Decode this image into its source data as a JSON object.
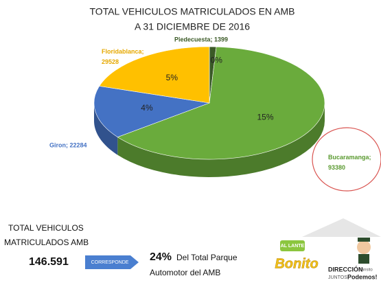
{
  "chart_data": {
    "type": "pie",
    "title": "TOTAL VEHICULOS MATRICULADOS  EN AMB",
    "subtitle": "A 31 DICIEMBRE  DE 2016",
    "labels": [
      "Piedecuesta; 1399",
      "Bucaramanga; 93380",
      "Giron; 22284",
      "Floridablanca; 29528"
    ],
    "values": [
      1399,
      93380,
      22284,
      29528
    ],
    "percent_labels": [
      "0%",
      "15%",
      "4%",
      "5%"
    ],
    "colors": [
      "#3b5a26",
      "#6aab3c",
      "#4472c4",
      "#ffc000"
    ],
    "label_colors": [
      "#3b5a26",
      "#5a9a30",
      "#4472c4",
      "#e6a800"
    ]
  },
  "footer": {
    "total_heading": [
      "TOTAL VEHICULOS",
      "MATRICULADOS AMB"
    ],
    "total": "146.591",
    "arrow": "CORRESPONDE",
    "share": "24%",
    "share_text": [
      "Del Total Parque",
      "Automotor del AMB"
    ],
    "logo": {
      "badge": "AL LANTE",
      "brand": "Bonito",
      "office": "DIRECCIÓN",
      "office_sub": "tránsito",
      "slogan_1": "JUNTOS",
      "slogan_2": "Podemos!"
    }
  }
}
